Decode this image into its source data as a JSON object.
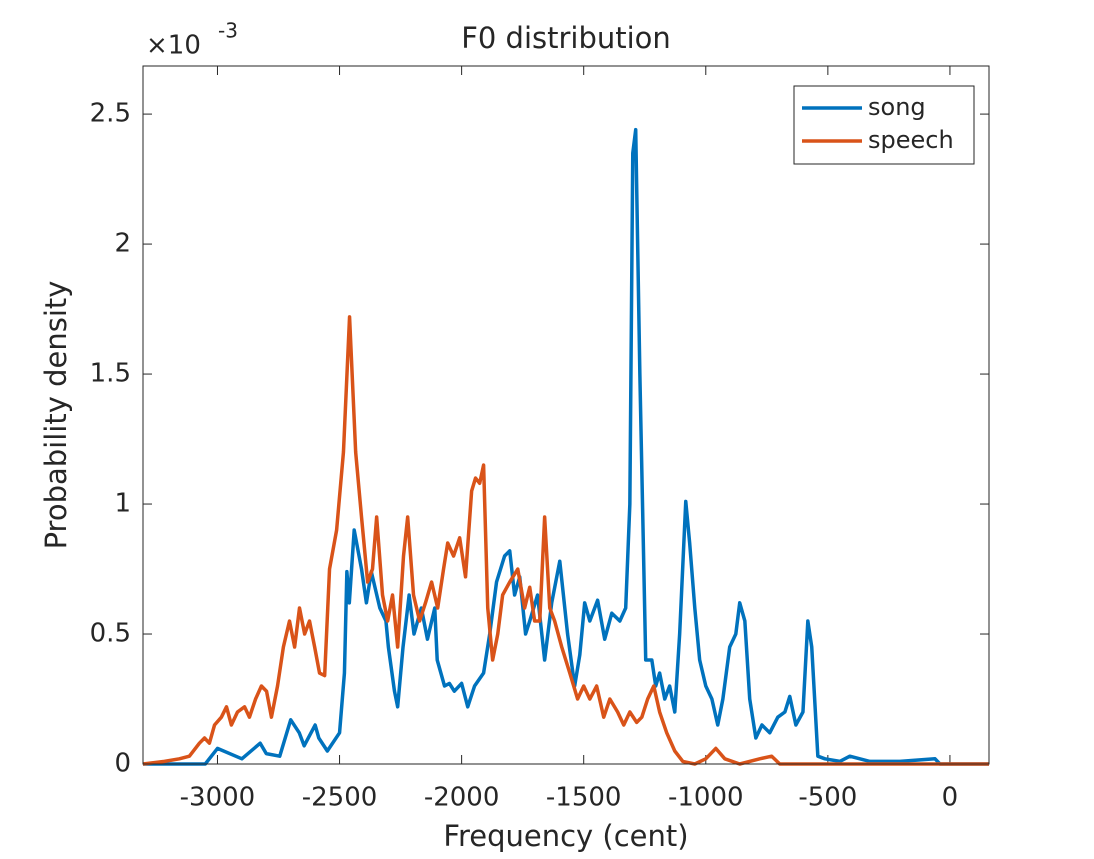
{
  "chart_data": {
    "type": "line",
    "title": "F0 distribution",
    "xlabel": "Frequency (cent)",
    "ylabel": "Probability density",
    "y_multiplier": {
      "base": "×10",
      "exponent": "-3"
    },
    "xlim": [
      -3305,
      160
    ],
    "ylim": [
      0,
      2.685
    ],
    "xticks": [
      -3000,
      -2500,
      -2000,
      -1500,
      -1000,
      -500,
      0
    ],
    "yticks": [
      0,
      0.5,
      1,
      1.5,
      2,
      2.5
    ],
    "legend": "northeast",
    "grid": false,
    "series": [
      {
        "name": "song",
        "color": "#0072bd",
        "x": [
          -3305,
          -3050,
          -3000,
          -2900,
          -2825,
          -2800,
          -2745,
          -2700,
          -2665,
          -2645,
          -2600,
          -2585,
          -2550,
          -2500,
          -2480,
          -2470,
          -2460,
          -2440,
          -2410,
          -2390,
          -2370,
          -2335,
          -2310,
          -2300,
          -2275,
          -2262,
          -2240,
          -2215,
          -2195,
          -2165,
          -2140,
          -2110,
          -2100,
          -2070,
          -2050,
          -2030,
          -2000,
          -1975,
          -1947,
          -1910,
          -1885,
          -1857,
          -1824,
          -1803,
          -1783,
          -1762,
          -1738,
          -1721,
          -1689,
          -1660,
          -1631,
          -1598,
          -1566,
          -1537,
          -1516,
          -1496,
          -1475,
          -1443,
          -1414,
          -1385,
          -1352,
          -1328,
          -1311,
          -1299,
          -1287,
          -1270,
          -1246,
          -1221,
          -1205,
          -1189,
          -1168,
          -1148,
          -1127,
          -1107,
          -1082,
          -1066,
          -1045,
          -1025,
          -1000,
          -975,
          -951,
          -930,
          -902,
          -877,
          -861,
          -840,
          -820,
          -795,
          -770,
          -738,
          -705,
          -676,
          -656,
          -631,
          -602,
          -582,
          -566,
          -541,
          -512,
          -451,
          -410,
          -369,
          -328,
          -205,
          -61,
          -41,
          160
        ],
        "values": [
          0,
          0,
          0.06,
          0.02,
          0.08,
          0.04,
          0.03,
          0.17,
          0.12,
          0.07,
          0.15,
          0.1,
          0.05,
          0.12,
          0.35,
          0.74,
          0.62,
          0.9,
          0.75,
          0.62,
          0.74,
          0.6,
          0.55,
          0.45,
          0.28,
          0.22,
          0.45,
          0.65,
          0.5,
          0.6,
          0.48,
          0.6,
          0.4,
          0.3,
          0.31,
          0.28,
          0.31,
          0.22,
          0.3,
          0.35,
          0.5,
          0.7,
          0.8,
          0.82,
          0.65,
          0.72,
          0.5,
          0.55,
          0.65,
          0.4,
          0.62,
          0.78,
          0.5,
          0.3,
          0.42,
          0.62,
          0.55,
          0.63,
          0.48,
          0.58,
          0.55,
          0.6,
          1,
          2.35,
          2.44,
          1.5,
          0.4,
          0.4,
          0.3,
          0.35,
          0.25,
          0.3,
          0.2,
          0.5,
          1.01,
          0.85,
          0.6,
          0.4,
          0.3,
          0.25,
          0.15,
          0.25,
          0.45,
          0.5,
          0.62,
          0.55,
          0.25,
          0.1,
          0.15,
          0.12,
          0.18,
          0.2,
          0.26,
          0.15,
          0.2,
          0.55,
          0.45,
          0.03,
          0.02,
          0.01,
          0.03,
          0.02,
          0.01,
          0.01,
          0.02,
          0,
          0
        ]
      },
      {
        "name": "speech",
        "color": "#d95319",
        "x": [
          -3305,
          -3217,
          -3156,
          -3115,
          -3074,
          -3053,
          -3033,
          -3012,
          -2984,
          -2963,
          -2943,
          -2918,
          -2889,
          -2869,
          -2844,
          -2820,
          -2799,
          -2779,
          -2754,
          -2730,
          -2705,
          -2684,
          -2664,
          -2643,
          -2623,
          -2602,
          -2582,
          -2561,
          -2541,
          -2512,
          -2484,
          -2459,
          -2434,
          -2410,
          -2385,
          -2365,
          -2348,
          -2324,
          -2303,
          -2283,
          -2262,
          -2238,
          -2221,
          -2197,
          -2172,
          -2148,
          -2123,
          -2098,
          -2074,
          -2057,
          -2033,
          -2008,
          -1984,
          -1959,
          -1943,
          -1926,
          -1910,
          -1893,
          -1873,
          -1852,
          -1832,
          -1803,
          -1770,
          -1742,
          -1721,
          -1701,
          -1680,
          -1660,
          -1639,
          -1619,
          -1590,
          -1557,
          -1525,
          -1500,
          -1475,
          -1447,
          -1418,
          -1393,
          -1361,
          -1336,
          -1311,
          -1283,
          -1262,
          -1238,
          -1213,
          -1189,
          -1160,
          -1127,
          -1094,
          -1045,
          -1000,
          -959,
          -922,
          -861,
          -779,
          -730,
          -697,
          160
        ],
        "values": [
          0,
          0.01,
          0.02,
          0.03,
          0.08,
          0.1,
          0.08,
          0.15,
          0.18,
          0.22,
          0.15,
          0.2,
          0.22,
          0.18,
          0.25,
          0.3,
          0.28,
          0.18,
          0.3,
          0.45,
          0.55,
          0.45,
          0.6,
          0.5,
          0.55,
          0.45,
          0.35,
          0.34,
          0.75,
          0.9,
          1.2,
          1.72,
          1.2,
          0.95,
          0.7,
          0.75,
          0.95,
          0.65,
          0.55,
          0.65,
          0.45,
          0.8,
          0.95,
          0.65,
          0.55,
          0.62,
          0.7,
          0.6,
          0.75,
          0.85,
          0.8,
          0.87,
          0.72,
          1.05,
          1.1,
          1.08,
          1.15,
          0.6,
          0.4,
          0.5,
          0.65,
          0.7,
          0.75,
          0.6,
          0.68,
          0.55,
          0.55,
          0.95,
          0.6,
          0.55,
          0.45,
          0.35,
          0.25,
          0.3,
          0.25,
          0.3,
          0.18,
          0.25,
          0.2,
          0.15,
          0.2,
          0.16,
          0.18,
          0.25,
          0.3,
          0.2,
          0.12,
          0.05,
          0.01,
          0,
          0.02,
          0.06,
          0.02,
          0,
          0.02,
          0.03,
          0,
          0
        ]
      }
    ]
  }
}
